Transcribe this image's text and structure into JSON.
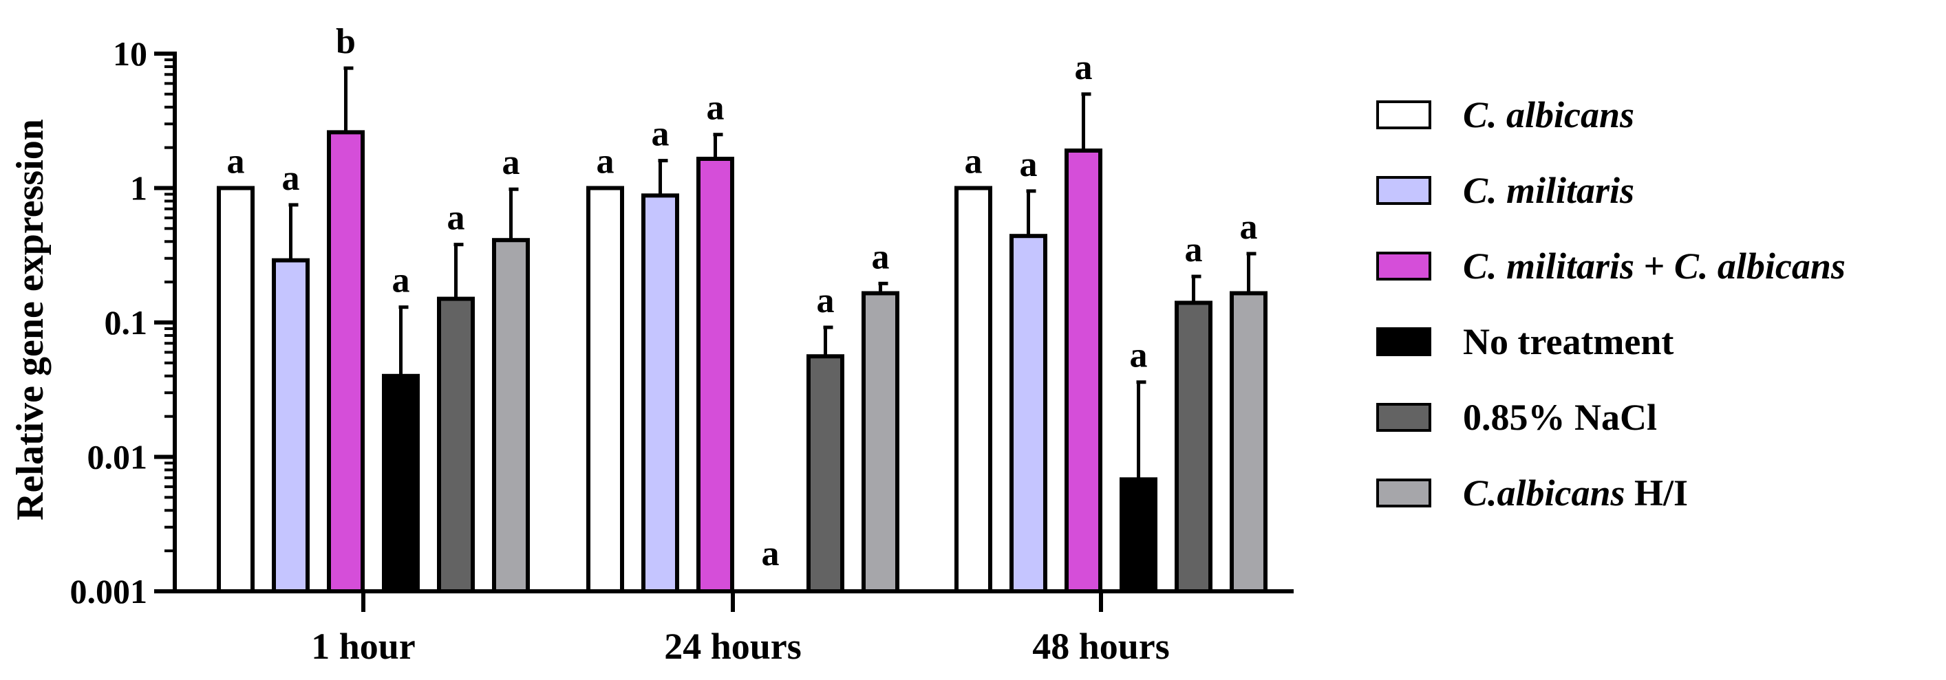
{
  "chart_data": {
    "type": "bar",
    "ylabel": "Relative gene expression",
    "xlabel": "",
    "yscale": "log",
    "ylim": [
      0.001,
      10
    ],
    "yticks": [
      "0.001",
      "0.01",
      "0.1",
      "1",
      "10"
    ],
    "categories": [
      "1 hour",
      "24 hours",
      "48 hours"
    ],
    "grid": false,
    "legend_position": "right",
    "series": [
      {
        "name": "C. albicans",
        "color": "#ffffff",
        "values": [
          1.0,
          1.0,
          1.0
        ],
        "errors": [
          null,
          null,
          null
        ],
        "letters": [
          "a",
          "a",
          "a"
        ]
      },
      {
        "name": "C. militaris",
        "color": "#c5c5ff",
        "values": [
          0.29,
          0.88,
          0.44
        ],
        "errors": [
          0.75,
          1.6,
          0.95
        ],
        "letters": [
          "a",
          "a",
          "a"
        ]
      },
      {
        "name": "C. militaris + C. albicans",
        "color": "#d54ed9",
        "values": [
          2.6,
          1.65,
          1.9
        ],
        "errors": [
          7.8,
          2.5,
          5.0
        ],
        "letters": [
          "b",
          "a",
          "a"
        ]
      },
      {
        "name": "No treatment",
        "color": "#000000",
        "values": [
          0.04,
          null,
          0.0068
        ],
        "errors": [
          0.13,
          null,
          0.036
        ],
        "letters": [
          "a",
          "a",
          "a"
        ]
      },
      {
        "name": "0.85% NaCl",
        "color": "#636363",
        "values": [
          0.15,
          0.056,
          0.14
        ],
        "errors": [
          0.38,
          0.092,
          0.22
        ],
        "letters": [
          "a",
          "a",
          "a"
        ]
      },
      {
        "name": "C.albicans H/I",
        "color": "#a6a6aa",
        "values": [
          0.41,
          0.165,
          0.165
        ],
        "errors": [
          0.98,
          0.195,
          0.325
        ],
        "letters": [
          "a",
          "a",
          "a"
        ]
      }
    ]
  },
  "legend": {
    "items": [
      {
        "italic": "C. albicans",
        "plain": "",
        "color": "#ffffff"
      },
      {
        "italic": "C. militaris",
        "plain": "",
        "color": "#c5c5ff"
      },
      {
        "italic": "C. militaris",
        "plain": " + ",
        "italic2": "C. albicans",
        "color": "#d54ed9"
      },
      {
        "italic": "",
        "plain": "No treatment",
        "color": "#000000"
      },
      {
        "italic": "",
        "plain": "0.85% NaCl",
        "color": "#636363"
      },
      {
        "italic": "C.albicans",
        "plain": " H/I",
        "color": "#a6a6aa"
      }
    ]
  }
}
